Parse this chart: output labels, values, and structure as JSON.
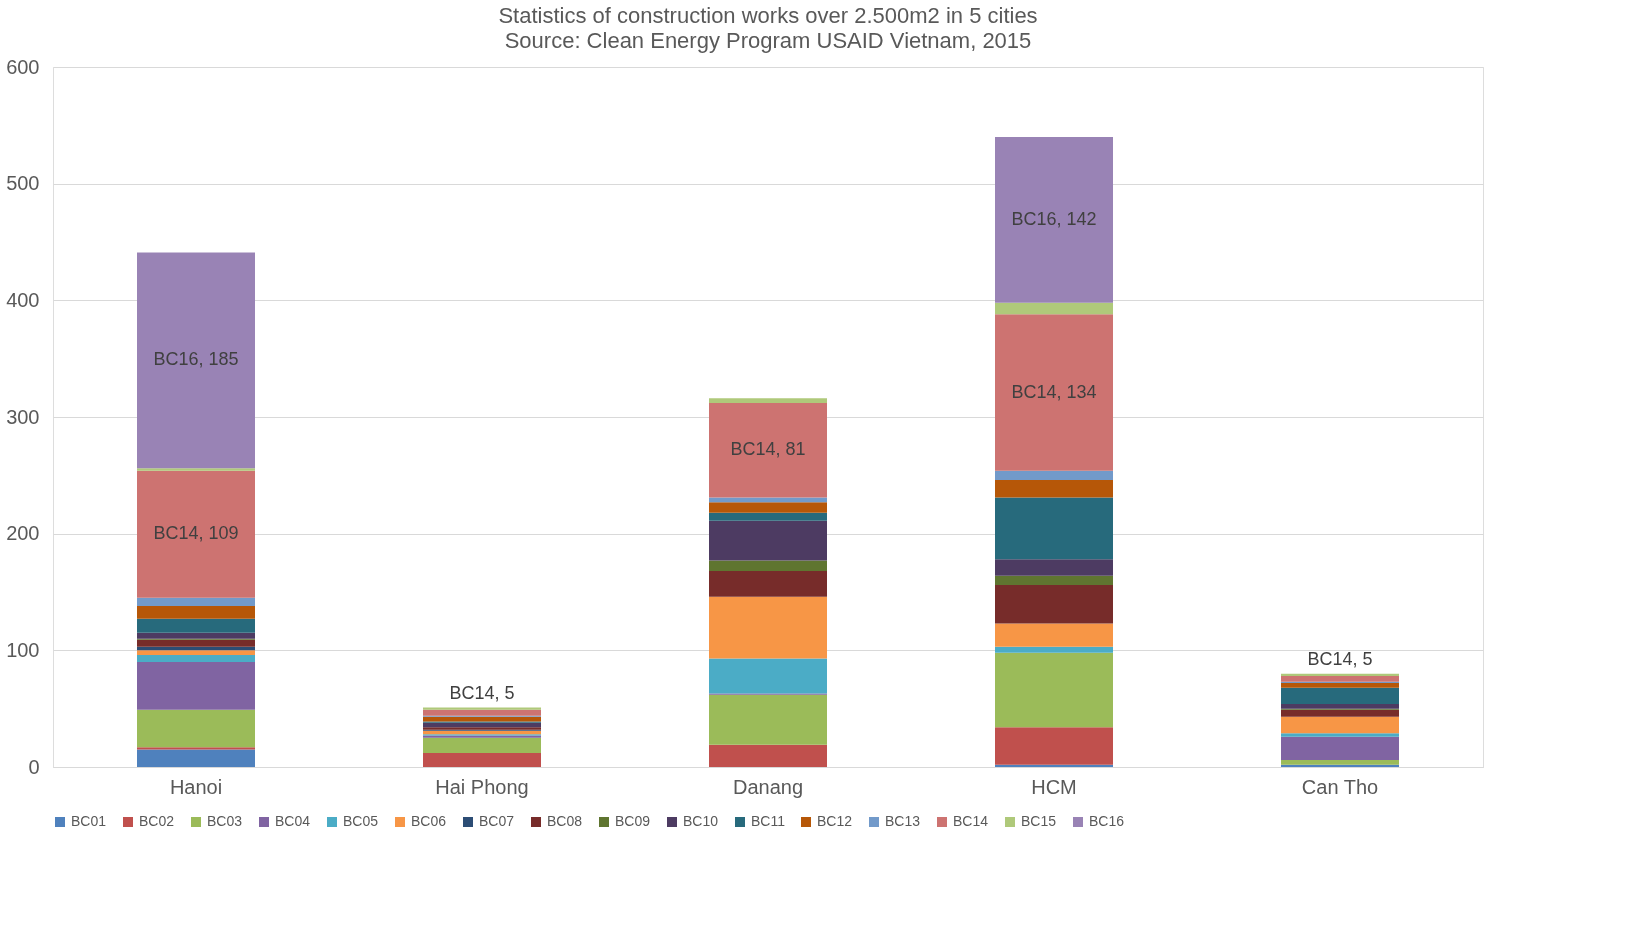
{
  "chart_data": {
    "type": "bar",
    "stacked": true,
    "title": "Statistics of construction works over 2.500m2 in 5 cities",
    "subtitle": "Source: Clean Energy Program USAID Vietnam, 2015",
    "categories": [
      "Hanoi",
      "Hai Phong",
      "Danang",
      "HCM",
      "Can Tho"
    ],
    "ylim": [
      0,
      600
    ],
    "yticks": [
      0,
      100,
      200,
      300,
      400,
      500,
      600
    ],
    "grid": "y",
    "legend": "bottom",
    "series": [
      {
        "name": "BC01",
        "color": "#4f81bd",
        "values": [
          15,
          0,
          0,
          2,
          2
        ]
      },
      {
        "name": "BC02",
        "color": "#c0504d",
        "values": [
          2,
          12,
          19,
          32,
          0
        ]
      },
      {
        "name": "BC03",
        "color": "#9bbb59",
        "values": [
          32,
          13,
          43,
          64,
          4
        ]
      },
      {
        "name": "BC04",
        "color": "#8064a2",
        "values": [
          41,
          2,
          1,
          0,
          20
        ]
      },
      {
        "name": "BC05",
        "color": "#4bacc6",
        "values": [
          6,
          1,
          30,
          5,
          3
        ]
      },
      {
        "name": "BC06",
        "color": "#f79646",
        "values": [
          4,
          3,
          53,
          20,
          14
        ]
      },
      {
        "name": "BC07",
        "color": "#2c4d75",
        "values": [
          3,
          1,
          0,
          0,
          0
        ]
      },
      {
        "name": "BC08",
        "color": "#772c2a",
        "values": [
          6,
          2,
          22,
          33,
          6
        ]
      },
      {
        "name": "BC09",
        "color": "#5f7530",
        "values": [
          1,
          0,
          9,
          8,
          1
        ]
      },
      {
        "name": "BC10",
        "color": "#4d3b62",
        "values": [
          5,
          4,
          34,
          14,
          4
        ]
      },
      {
        "name": "BC11",
        "color": "#276a7c",
        "values": [
          12,
          1,
          7,
          53,
          14
        ]
      },
      {
        "name": "BC12",
        "color": "#b65708",
        "values": [
          11,
          4,
          9,
          15,
          4
        ]
      },
      {
        "name": "BC13",
        "color": "#729aca",
        "values": [
          7,
          1,
          4,
          8,
          1
        ]
      },
      {
        "name": "BC14",
        "color": "#cd7371",
        "values": [
          109,
          5,
          81,
          134,
          5
        ],
        "value_labels": [
          "BC14, 109",
          "BC14, 5",
          "BC14, 81",
          "BC14, 134",
          "BC14, 5"
        ]
      },
      {
        "name": "BC15",
        "color": "#afc97a",
        "values": [
          2,
          2,
          4,
          10,
          2
        ]
      },
      {
        "name": "BC16",
        "color": "#9983b5",
        "values": [
          185,
          0,
          0,
          142,
          0
        ],
        "value_labels": [
          "BC16, 185",
          null,
          null,
          "BC16, 142",
          null
        ]
      }
    ]
  }
}
